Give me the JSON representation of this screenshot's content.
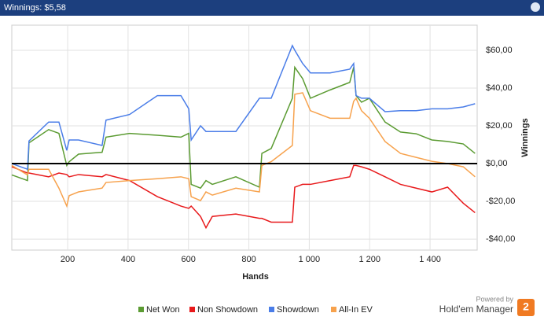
{
  "chart_data": {
    "type": "line",
    "title": "Winnings: $5,58",
    "x_label": "Hands",
    "y_label": "Winnings",
    "x": [
      15,
      67,
      72,
      137,
      171,
      197,
      205,
      236,
      314,
      327,
      405,
      497,
      575,
      601,
      609,
      640,
      658,
      679,
      757,
      835,
      843,
      874,
      944,
      952,
      978,
      1004,
      1069,
      1134,
      1147,
      1155,
      1173,
      1199,
      1251,
      1302,
      1354,
      1406,
      1458,
      1510,
      1549
    ],
    "series": [
      {
        "name": "Net Won",
        "color": "#5b9b32",
        "values": [
          -6,
          -9,
          11,
          18,
          16,
          -1,
          1,
          5,
          6,
          14,
          16,
          15,
          14,
          16,
          -11,
          -13,
          -9,
          -11,
          -7,
          -12.5,
          5.4,
          8,
          34.6,
          51,
          45,
          34.6,
          39,
          43,
          51,
          36,
          32.5,
          34.6,
          22,
          16.7,
          15.8,
          12.5,
          11.7,
          10.4,
          5.4
        ]
      },
      {
        "name": "Non Showdown",
        "color": "#e8191b",
        "values": [
          -1.7,
          -5,
          -5,
          -7,
          -5,
          -5.8,
          -7,
          -5.8,
          -7,
          -5.8,
          -9,
          -17.5,
          -22.5,
          -23.7,
          -22.5,
          -28,
          -34,
          -28,
          -26.7,
          -29,
          -29,
          -31,
          -31,
          -12.5,
          -11,
          -11,
          -9,
          -7,
          -1,
          -1,
          -1.7,
          -3,
          -7,
          -11,
          -13,
          -15,
          -12.5,
          -21,
          -26
        ]
      },
      {
        "name": "Showdown",
        "color": "#4a7de8",
        "values": [
          0,
          -3,
          12,
          22,
          22,
          7,
          12.5,
          12.5,
          9.6,
          23,
          26,
          36,
          36,
          29,
          12.5,
          20,
          17,
          17,
          17,
          34.6,
          34.6,
          34.6,
          62.5,
          60,
          53,
          48,
          48,
          50,
          53,
          36,
          34.6,
          34.6,
          27.5,
          28,
          28,
          29,
          29,
          30,
          31.7
        ]
      },
      {
        "name": "All-In EV",
        "color": "#f7a24d",
        "values": [
          -1,
          -6,
          -3,
          -3,
          -13,
          -22.5,
          -17,
          -15,
          -13,
          -10,
          -9,
          -8,
          -7,
          -8,
          -17.5,
          -19.6,
          -15,
          -16.7,
          -13,
          -15,
          -1,
          1,
          9.6,
          36.7,
          37.5,
          28,
          24,
          24,
          33,
          34.6,
          28,
          24,
          11.7,
          5.4,
          3.3,
          1.2,
          0,
          -1.7,
          -7
        ]
      }
    ],
    "xlim": [
      15,
      1556
    ],
    "ylim": [
      -45.8,
      73.3
    ],
    "xticks": [
      200,
      400,
      600,
      800,
      {
        "value": 1000,
        "label": "1 000"
      },
      {
        "value": 1200,
        "label": "1 200"
      },
      {
        "value": 1400,
        "label": "1 400"
      }
    ],
    "yticks": [
      {
        "value": -40,
        "label": "-$40,00"
      },
      {
        "value": -20,
        "label": "-$20,00"
      },
      {
        "value": 0,
        "label": "$0,00"
      },
      {
        "value": 20,
        "label": "$20,00"
      },
      {
        "value": 40,
        "label": "$40,00"
      },
      {
        "value": 60,
        "label": "$60,00"
      }
    ],
    "grid": true
  },
  "branding": {
    "powered_by": "Powered by",
    "product": "Hold'em Manager",
    "logo": "2"
  }
}
